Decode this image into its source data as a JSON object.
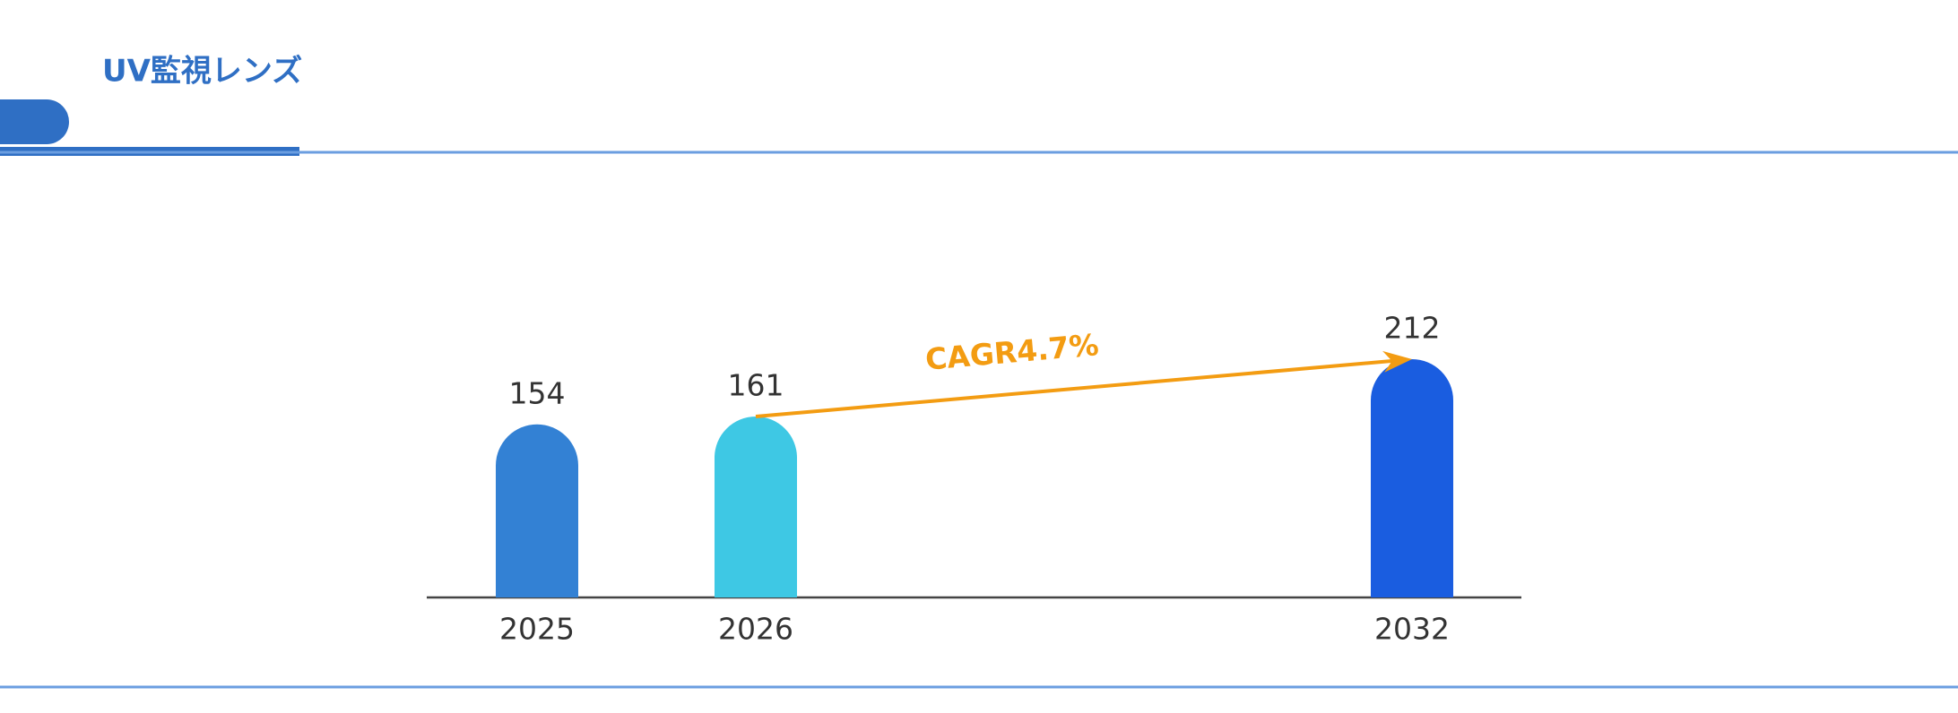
{
  "header": {
    "title": "UV監視レンズ"
  },
  "chart_data": {
    "type": "bar",
    "categories": [
      "2025",
      "2026",
      "2032"
    ],
    "values": [
      154,
      161,
      212
    ],
    "colors": [
      "#3381d4",
      "#3ec8e4",
      "#1a5de0"
    ],
    "ylim": [
      0,
      212
    ],
    "annotation": "CAGR4.7%"
  }
}
